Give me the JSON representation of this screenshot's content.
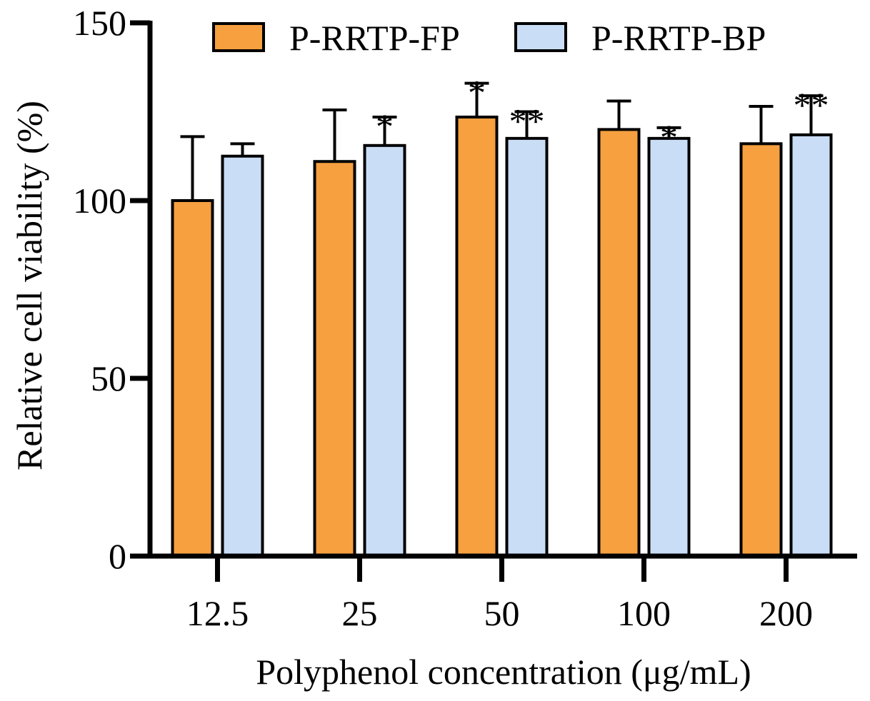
{
  "chart_data": {
    "type": "bar",
    "title": "",
    "xlabel": "Polyphenol concentration (μg/mL)",
    "ylabel": "Relative cell viability (%)",
    "ylim": [
      0,
      150
    ],
    "yticks": [
      0,
      50,
      100,
      150
    ],
    "ytick_labels": [
      "0",
      "50",
      "100",
      "150"
    ],
    "categories": [
      "12.5",
      "25",
      "50",
      "100",
      "200"
    ],
    "series": [
      {
        "name": "P-RRTP-FP",
        "color": "#F7A040",
        "values": [
          100,
          111,
          123.5,
          120,
          116
        ],
        "errors": [
          18,
          14.5,
          9.5,
          8,
          10.5
        ],
        "significance": [
          "",
          "",
          "*",
          "",
          ""
        ]
      },
      {
        "name": "P-RRTP-BP",
        "color": "#C9DDF6",
        "values": [
          112.5,
          115.5,
          117.5,
          117.5,
          118.5
        ],
        "errors": [
          3.5,
          8,
          7.5,
          3,
          11
        ],
        "significance": [
          "",
          "*",
          "**",
          "*",
          "**"
        ]
      }
    ],
    "legend_position": "top"
  }
}
